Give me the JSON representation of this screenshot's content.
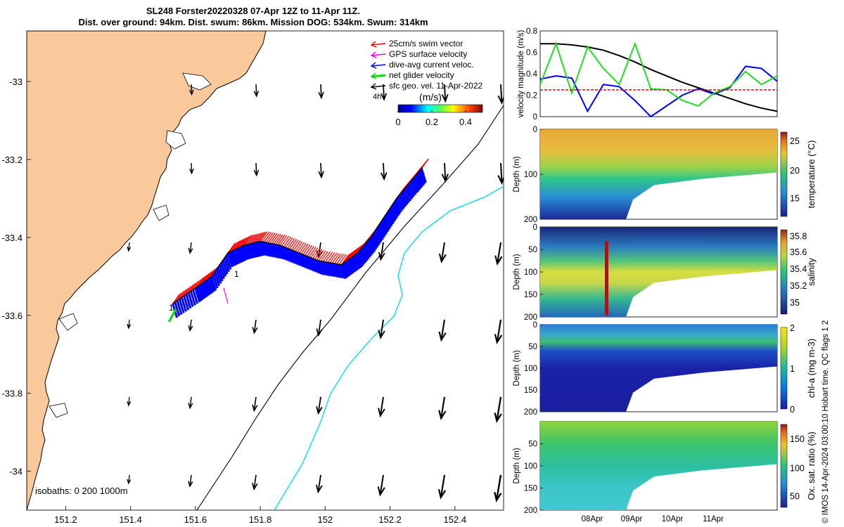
{
  "header": {
    "title_line1": "SL248 Forster20220328 07-Apr 12Z to 11-Apr 11Z.",
    "title_line2": "Dist. over ground: 94km. Dist. swum: 86km. Mission DOG: 534km. Swum: 314km"
  },
  "copyright": "© IMOS 14-Apr-2024 03:00:10 Hobart time. QC flags 1  2",
  "colors": {
    "land": "#f9c89b",
    "swim_vector": "#ff0000",
    "gps_velocity": "#ff00ff",
    "current": "#0000ff",
    "net_velocity": "#00dd00",
    "isobath_200": "#00dddd",
    "geo_velocity": "#000000"
  },
  "chart_data": [
    {
      "type": "map",
      "xlim": [
        151.08,
        152.55
      ],
      "ylim": [
        -34.1,
        -32.87
      ],
      "xticks": [
        "151.2",
        "151.4",
        "151.6",
        "151.8",
        "152",
        "152.2",
        "152.4"
      ],
      "xtick_values": [
        151.2,
        151.4,
        151.6,
        151.8,
        152.0,
        152.2,
        152.4
      ],
      "yticks": [
        "-33",
        "-33.2",
        "-33.4",
        "-33.6",
        "-33.8",
        "-34"
      ],
      "ytick_values": [
        -33.0,
        -33.2,
        -33.4,
        -33.6,
        -33.8,
        -34.0
      ],
      "legend": [
        {
          "label": "25cm/s swim vector",
          "color": "#ff0000"
        },
        {
          "label": "GPS surface velocity",
          "color": "#ff00ff"
        },
        {
          "label": "dive-avg current veloc.",
          "color": "#0000ff"
        },
        {
          "label": "net glider velocity",
          "color": "#00dd00"
        },
        {
          "label": "sfc geo. vel. 11-Apr-2022",
          "color": "#000000"
        }
      ],
      "legend_extra": "4h",
      "colorbar": {
        "label": "(m/s)",
        "ticks": [
          "0",
          "0.2",
          "0.4"
        ],
        "range": [
          0,
          0.5
        ]
      },
      "isobaths_label": "isobaths: 0   200  1000m",
      "track_label": "1",
      "track": [
        [
          151.53,
          -33.57
        ],
        [
          151.6,
          -33.53
        ],
        [
          151.65,
          -33.5
        ],
        [
          151.7,
          -33.44
        ],
        [
          151.75,
          -33.42
        ],
        [
          151.8,
          -33.41
        ],
        [
          151.86,
          -33.42
        ],
        [
          151.92,
          -33.44
        ],
        [
          151.98,
          -33.46
        ],
        [
          152.05,
          -33.47
        ],
        [
          152.1,
          -33.44
        ],
        [
          152.14,
          -33.4
        ],
        [
          152.18,
          -33.35
        ],
        [
          152.22,
          -33.3
        ],
        [
          152.27,
          -33.25
        ],
        [
          152.3,
          -33.22
        ]
      ]
    },
    {
      "type": "line",
      "ylabel": "velocity magnitude (m/s)",
      "ylim": [
        0,
        0.8
      ],
      "yticks": [
        "0",
        "0.2",
        "0.4",
        "0.6",
        "0.8"
      ],
      "series": [
        {
          "color": "#000000",
          "values": [
            0.68,
            0.68,
            0.67,
            0.65,
            0.62,
            0.57,
            0.51,
            0.44,
            0.38,
            0.32,
            0.27,
            0.22,
            0.17,
            0.12,
            0.08,
            0.05
          ]
        },
        {
          "color": "#0000ff",
          "values": [
            0.35,
            0.38,
            0.36,
            0.05,
            0.3,
            0.28,
            0.15,
            0.0,
            0.1,
            0.2,
            0.26,
            0.21,
            0.27,
            0.47,
            0.45,
            0.33
          ]
        },
        {
          "color": "#22dd22",
          "values": [
            0.3,
            0.68,
            0.22,
            0.65,
            0.45,
            0.3,
            0.68,
            0.26,
            0.25,
            0.15,
            0.1,
            0.22,
            0.28,
            0.42,
            0.3,
            0.38
          ]
        },
        {
          "color": "#ff0000",
          "values": [
            0.25,
            0.25,
            0.25,
            0.25,
            0.25,
            0.25,
            0.25,
            0.25,
            0.25,
            0.25,
            0.25,
            0.25,
            0.25,
            0.25,
            0.25,
            0.25
          ]
        }
      ]
    },
    {
      "type": "heatmap",
      "ylabel": "Depth (m)",
      "yticks": [
        "0",
        "100",
        "200"
      ],
      "colorbar_label": "temperature (°C)",
      "colorbar_ticks": [
        "25",
        "20",
        "15"
      ],
      "colorbar_fracs": [
        0.1,
        0.45,
        0.78
      ]
    },
    {
      "type": "heatmap",
      "ylabel": "Depth (m)",
      "yticks": [
        "0",
        "50",
        "100",
        "150",
        "200"
      ],
      "colorbar_label": "salinity",
      "colorbar_ticks": [
        "35.8",
        "35.6",
        "35.4",
        "35.2",
        "35"
      ],
      "colorbar_fracs": [
        0.07,
        0.26,
        0.46,
        0.66,
        0.86
      ]
    },
    {
      "type": "heatmap",
      "ylabel": "Depth (m)",
      "yticks": [
        "0",
        "50",
        "100",
        "150",
        "200"
      ],
      "colorbar_label": "chl-a (mg m-3)",
      "colorbar_ticks": [
        "2",
        "1",
        "0"
      ],
      "colorbar_fracs": [
        0.0,
        0.5,
        1.0
      ]
    },
    {
      "type": "heatmap",
      "ylabel": "Depth (m)",
      "yticks": [
        "50",
        "100",
        "150",
        "200"
      ],
      "colorbar_label": "Ox. sat. ratio (%)",
      "colorbar_ticks": [
        "150",
        "100",
        "50"
      ],
      "colorbar_fracs": [
        0.17,
        0.52,
        0.86
      ],
      "xticks": [
        "08Apr",
        "09Apr",
        "10Apr",
        "11Apr"
      ]
    }
  ]
}
